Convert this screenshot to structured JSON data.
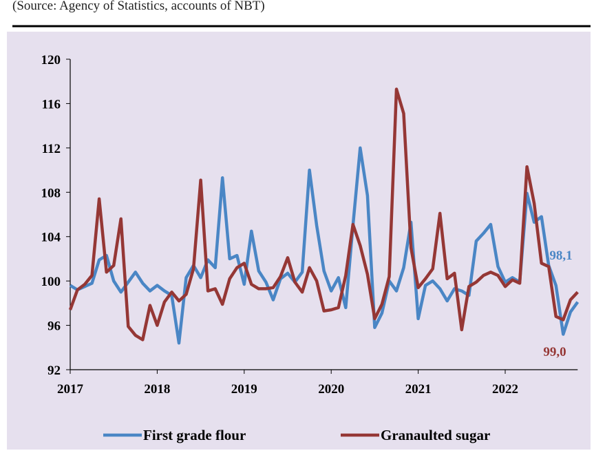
{
  "chart_data": {
    "type": "line",
    "source": "(Source: Agency of Statistics, accounts of NBT)",
    "x": [
      2017,
      2017.083,
      2017.167,
      2017.25,
      2017.333,
      2017.417,
      2017.5,
      2017.583,
      2017.667,
      2017.75,
      2017.833,
      2017.917,
      2018,
      2018.083,
      2018.167,
      2018.25,
      2018.333,
      2018.417,
      2018.5,
      2018.583,
      2018.667,
      2018.75,
      2018.833,
      2018.917,
      2019,
      2019.083,
      2019.167,
      2019.25,
      2019.333,
      2019.417,
      2019.5,
      2019.583,
      2019.667,
      2019.75,
      2019.833,
      2019.917,
      2020,
      2020.083,
      2020.167,
      2020.25,
      2020.333,
      2020.417,
      2020.5,
      2020.583,
      2020.667,
      2020.75,
      2020.833,
      2020.917,
      2021,
      2021.083,
      2021.167,
      2021.25,
      2021.333,
      2021.417,
      2021.5,
      2021.583,
      2021.667,
      2021.75,
      2021.833,
      2021.917,
      2022,
      2022.083,
      2022.167,
      2022.25,
      2022.333,
      2022.417,
      2022.5,
      2022.583,
      2022.667,
      2022.75,
      2022.833
    ],
    "series": [
      {
        "name": "First grade flour",
        "color": "#4a86c5",
        "end_label": "98,1",
        "values": [
          99.6,
          99.2,
          99.5,
          99.8,
          101.9,
          102.3,
          100.0,
          99.0,
          99.9,
          100.8,
          99.8,
          99.1,
          99.6,
          99.1,
          98.7,
          94.4,
          100.3,
          101.4,
          100.3,
          101.9,
          101.2,
          109.3,
          102.0,
          102.3,
          99.7,
          104.5,
          100.9,
          99.9,
          98.3,
          100.2,
          100.7,
          99.9,
          100.8,
          110.0,
          105.0,
          100.9,
          99.1,
          100.3,
          97.6,
          105.0,
          112.0,
          107.7,
          95.8,
          97.1,
          100.0,
          99.1,
          101.2,
          105.3,
          96.6,
          99.6,
          100.0,
          99.3,
          98.2,
          99.3,
          99.1,
          98.7,
          103.6,
          104.3,
          105.1,
          101.3,
          99.9,
          100.3,
          99.9,
          107.9,
          105.3,
          105.8,
          101.4,
          99.6,
          95.2,
          97.2,
          98.1
        ]
      },
      {
        "name": "Granaulted sugar",
        "color": "#953735",
        "end_label": "99,0",
        "values": [
          97.4,
          99.2,
          99.7,
          100.5,
          107.4,
          100.8,
          101.4,
          105.6,
          95.9,
          95.1,
          94.7,
          97.8,
          96.0,
          98.1,
          99.0,
          98.2,
          98.8,
          101.1,
          109.1,
          99.1,
          99.3,
          97.9,
          100.2,
          101.2,
          101.6,
          99.7,
          99.3,
          99.3,
          99.4,
          100.4,
          102.1,
          99.9,
          99.0,
          101.2,
          100.0,
          97.3,
          97.4,
          97.6,
          100.5,
          105.1,
          103.2,
          100.6,
          96.6,
          97.9,
          100.4,
          117.3,
          115.1,
          103.0,
          99.4,
          100.2,
          101.1,
          106.1,
          100.2,
          100.7,
          95.6,
          99.5,
          99.9,
          100.5,
          100.8,
          100.5,
          99.5,
          100.1,
          99.8,
          110.3,
          107.0,
          101.6,
          101.3,
          96.8,
          96.5,
          98.3,
          99.0
        ]
      }
    ],
    "xlim": [
      2017,
      2022.833
    ],
    "xticks": [
      2017,
      2018,
      2019,
      2020,
      2021,
      2022
    ],
    "ylim": [
      92,
      120
    ],
    "yticks": [
      92,
      96,
      100,
      104,
      108,
      112,
      116,
      120
    ],
    "grid": false,
    "legend": "bottom"
  }
}
